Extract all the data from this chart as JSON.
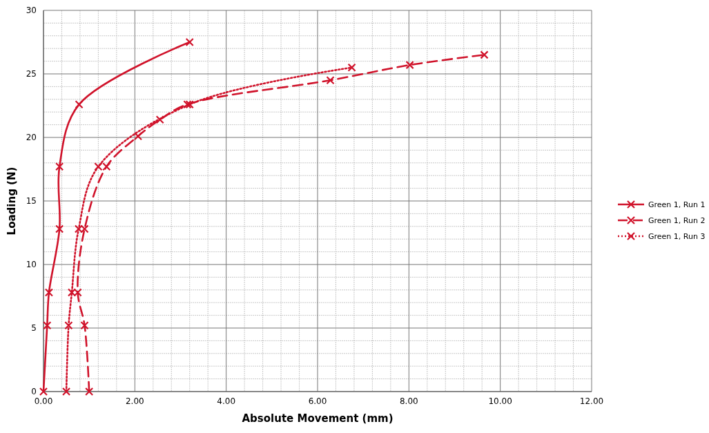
{
  "chart_data": {
    "type": "line",
    "xlabel": "Absolute Movement (mm)",
    "ylabel": "Loading (N)",
    "xlim": [
      0,
      12
    ],
    "xticks": [
      {
        "value": 0,
        "label": "0.00"
      },
      {
        "value": 2,
        "label": "2.00"
      },
      {
        "value": 4,
        "label": "4.00"
      },
      {
        "value": 6,
        "label": "6.00"
      },
      {
        "value": 8,
        "label": "8.00"
      },
      {
        "value": 10,
        "label": "10.00"
      },
      {
        "value": 12,
        "label": "12.00"
      }
    ],
    "ylim": [
      0,
      30
    ],
    "yticks": [
      0,
      5,
      10,
      15,
      20,
      25,
      30
    ],
    "grid": true,
    "legend": "right",
    "marker": "cross",
    "series": [
      {
        "name": "Green 1, Run 1",
        "color": "#d0122a",
        "line_style": "solid",
        "x": [
          0,
          0.08,
          0.12,
          0.35,
          0.35,
          0.78,
          3.2
        ],
        "values": [
          0,
          5.2,
          7.8,
          12.8,
          17.7,
          22.6,
          27.5
        ]
      },
      {
        "name": "Green 1, Run 2",
        "color": "#d0122a",
        "line_style": "dashed",
        "x": [
          1.0,
          0.9,
          0.75,
          0.9,
          1.38,
          2.07,
          2.55,
          3.15,
          6.28,
          8.02,
          9.65
        ],
        "values": [
          0,
          5.2,
          7.8,
          12.8,
          17.7,
          20.1,
          21.4,
          22.6,
          24.5,
          25.7,
          26.5
        ]
      },
      {
        "name": "Green 1, Run 3",
        "color": "#d0122a",
        "line_style": "dotted",
        "x": [
          0.5,
          0.55,
          0.62,
          0.77,
          1.2,
          3.2,
          6.75
        ],
        "values": [
          0,
          5.2,
          7.8,
          12.8,
          17.7,
          22.6,
          25.5
        ]
      }
    ]
  }
}
